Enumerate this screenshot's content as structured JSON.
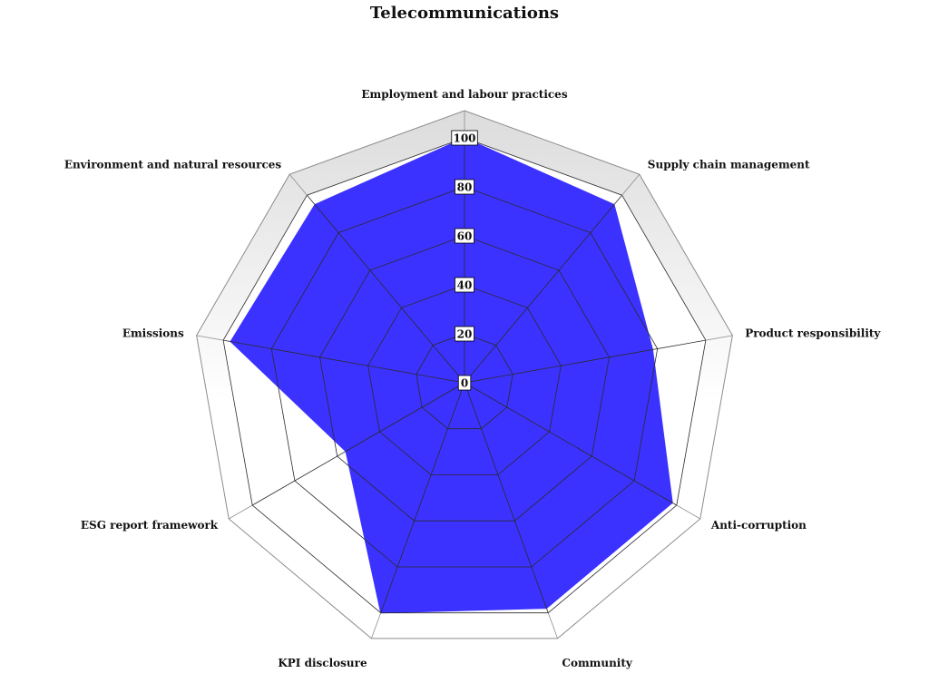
{
  "chart_data": {
    "type": "radar",
    "title": "Telecommunications",
    "categories": [
      "Employment and labour practices",
      "Supply chain management",
      "Product responsibility",
      "Anti-corruption",
      "Community",
      "KPI disclosure",
      "ESG report framework",
      "Emissions",
      "Environment and natural resources"
    ],
    "series": [
      {
        "values": [
          100,
          95,
          78,
          98,
          98,
          100,
          56,
          97,
          95
        ]
      }
    ],
    "rlim": [
      0,
      100
    ],
    "ticks": [
      "0",
      "20",
      "40",
      "60",
      "80",
      "100"
    ],
    "grid": true,
    "colors": {
      "fill": "#3c32ff",
      "grid_line": "#2a2a2a",
      "outer_ring": "#8c8c8c",
      "outer_band": "#e9e9e9"
    }
  }
}
